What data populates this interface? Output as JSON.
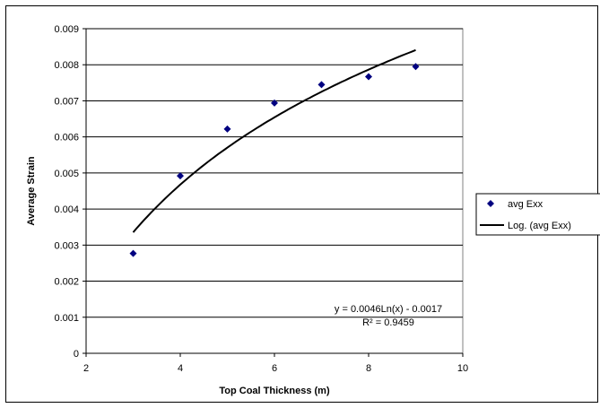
{
  "chart_data": {
    "type": "scatter",
    "title": "",
    "xlabel": "Top Coal Thickness (m)",
    "ylabel": "Average Strain",
    "xlim": [
      2,
      10
    ],
    "ylim": [
      0,
      0.009
    ],
    "x_ticks": [
      "2",
      "4",
      "6",
      "8",
      "10"
    ],
    "y_ticks": [
      "0",
      "0.001",
      "0.002",
      "0.003",
      "0.004",
      "0.005",
      "0.006",
      "0.007",
      "0.008",
      "0.009"
    ],
    "grid": "horizontal major gridlines",
    "legend_position": "right",
    "series": [
      {
        "name": "avg Exx",
        "type": "scatter",
        "marker": "diamond",
        "color": "#000080",
        "x": [
          3,
          4,
          5,
          6,
          7,
          8,
          9
        ],
        "y": [
          0.00277,
          0.00492,
          0.00622,
          0.00694,
          0.00745,
          0.00767,
          0.00795
        ]
      },
      {
        "name": "Log. (avg Exx)",
        "type": "line",
        "color": "#000000",
        "fit": {
          "kind": "log",
          "a": 0.0046,
          "b": -0.0017,
          "x_from": 3,
          "x_to": 9
        }
      }
    ],
    "annotations": {
      "equation": "y = 0.0046Ln(x) - 0.0017",
      "r_squared": "R² = 0.9459"
    }
  }
}
